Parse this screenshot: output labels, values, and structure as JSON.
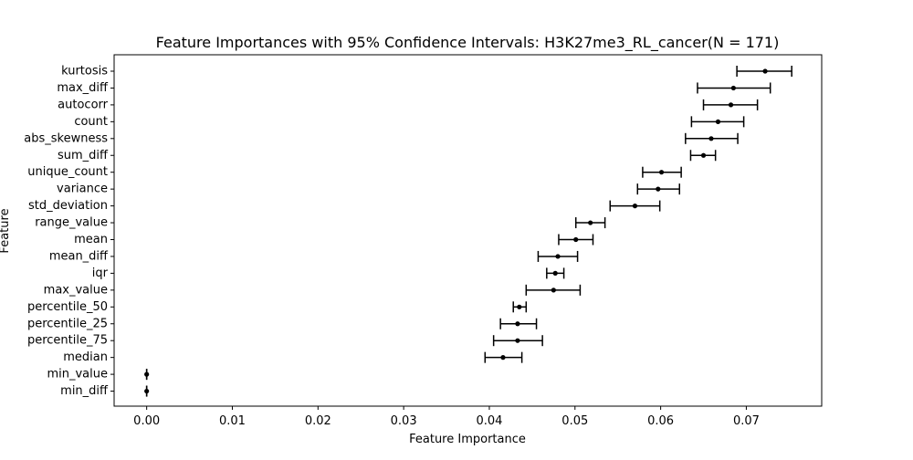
{
  "chart_data": {
    "type": "scatter",
    "title": "Feature Importances with 95% Confidence Intervals: H3K27me3_RL_cancer(N = 171)",
    "xlabel": "Feature Importance",
    "ylabel": "Feature",
    "xlim": [
      -0.0038,
      0.0788
    ],
    "xticks": [
      0.0,
      0.01,
      0.02,
      0.03,
      0.04,
      0.05,
      0.06,
      0.07
    ],
    "xtick_labels": [
      "0.00",
      "0.01",
      "0.02",
      "0.03",
      "0.04",
      "0.05",
      "0.06",
      "0.07"
    ],
    "grid": false,
    "legend": "none",
    "marker_color": "#000000",
    "points": [
      {
        "feature": "kurtosis",
        "value": 0.0722,
        "ci_low": 0.0689,
        "ci_high": 0.0753
      },
      {
        "feature": "max_diff",
        "value": 0.0685,
        "ci_low": 0.0643,
        "ci_high": 0.0728
      },
      {
        "feature": "autocorr",
        "value": 0.0682,
        "ci_low": 0.065,
        "ci_high": 0.0713
      },
      {
        "feature": "count",
        "value": 0.0667,
        "ci_low": 0.0636,
        "ci_high": 0.0697
      },
      {
        "feature": "abs_skewness",
        "value": 0.0659,
        "ci_low": 0.0629,
        "ci_high": 0.069
      },
      {
        "feature": "sum_diff",
        "value": 0.065,
        "ci_low": 0.0635,
        "ci_high": 0.0664
      },
      {
        "feature": "unique_count",
        "value": 0.0601,
        "ci_low": 0.0579,
        "ci_high": 0.0624
      },
      {
        "feature": "variance",
        "value": 0.0597,
        "ci_low": 0.0573,
        "ci_high": 0.0622
      },
      {
        "feature": "std_deviation",
        "value": 0.057,
        "ci_low": 0.0541,
        "ci_high": 0.0599
      },
      {
        "feature": "range_value",
        "value": 0.0518,
        "ci_low": 0.0501,
        "ci_high": 0.0535
      },
      {
        "feature": "mean",
        "value": 0.0501,
        "ci_low": 0.0481,
        "ci_high": 0.0521
      },
      {
        "feature": "mean_diff",
        "value": 0.048,
        "ci_low": 0.0457,
        "ci_high": 0.0503
      },
      {
        "feature": "iqr",
        "value": 0.0477,
        "ci_low": 0.0467,
        "ci_high": 0.0487
      },
      {
        "feature": "max_value",
        "value": 0.0475,
        "ci_low": 0.0443,
        "ci_high": 0.0506
      },
      {
        "feature": "percentile_50",
        "value": 0.0435,
        "ci_low": 0.0428,
        "ci_high": 0.0443
      },
      {
        "feature": "percentile_25",
        "value": 0.0433,
        "ci_low": 0.0413,
        "ci_high": 0.0455
      },
      {
        "feature": "percentile_75",
        "value": 0.0433,
        "ci_low": 0.0405,
        "ci_high": 0.0462
      },
      {
        "feature": "median",
        "value": 0.0416,
        "ci_low": 0.0395,
        "ci_high": 0.0438
      },
      {
        "feature": "min_value",
        "value": 0.0,
        "ci_low": 0.0,
        "ci_high": 0.0
      },
      {
        "feature": "min_diff",
        "value": 0.0,
        "ci_low": 0.0,
        "ci_high": 0.0
      }
    ]
  }
}
